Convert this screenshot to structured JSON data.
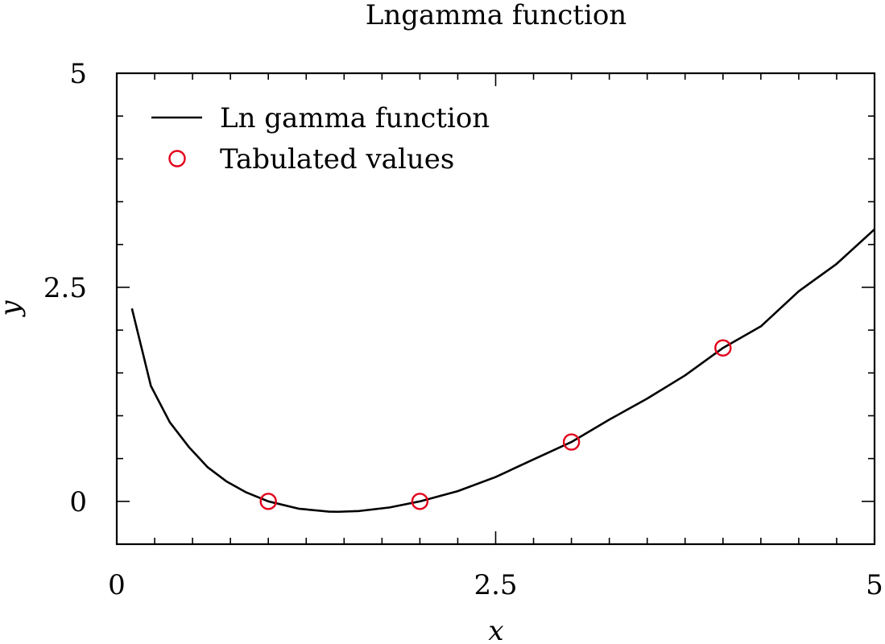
{
  "chart_data": {
    "type": "line",
    "title": "Lngamma function",
    "xlabel": "x",
    "ylabel": "y",
    "xlim": [
      0,
      5
    ],
    "ylim": [
      -0.5,
      5
    ],
    "x_ticks": [
      0,
      2.5,
      5
    ],
    "x_tick_labels": [
      "0",
      "2.5",
      "5"
    ],
    "y_ticks": [
      0,
      2.5,
      5
    ],
    "y_tick_labels": [
      "0",
      "2.5",
      "5"
    ],
    "grid": false,
    "legend_position": "top-left",
    "series": [
      {
        "name": "Ln gamma function",
        "style": "line",
        "color": "#000000",
        "x": [
          0.1,
          0.225,
          0.35,
          0.475,
          0.6,
          0.725,
          0.85,
          1.0,
          1.2,
          1.4,
          1.462,
          1.6,
          1.8,
          2.0,
          2.25,
          2.5,
          2.75,
          3.0,
          3.25,
          3.5,
          3.75,
          4.0,
          4.25,
          4.5,
          4.75,
          5.0
        ],
        "y": [
          2.2527,
          1.3487,
          0.9238,
          0.6367,
          0.3982,
          0.2317,
          0.1084,
          0.0,
          -0.0854,
          -0.1196,
          -0.1215,
          -0.1124,
          -0.0711,
          0.0,
          0.1196,
          0.2847,
          0.4903,
          0.6931,
          0.9545,
          1.201,
          1.4715,
          1.7918,
          2.044,
          2.4537,
          2.774,
          3.1781
        ]
      },
      {
        "name": "Tabulated values",
        "style": "marker",
        "marker": "open-circle",
        "color": "#e3001b",
        "x": [
          1,
          2,
          3,
          4
        ],
        "y": [
          0,
          0,
          0.6931,
          1.7918
        ]
      }
    ]
  }
}
